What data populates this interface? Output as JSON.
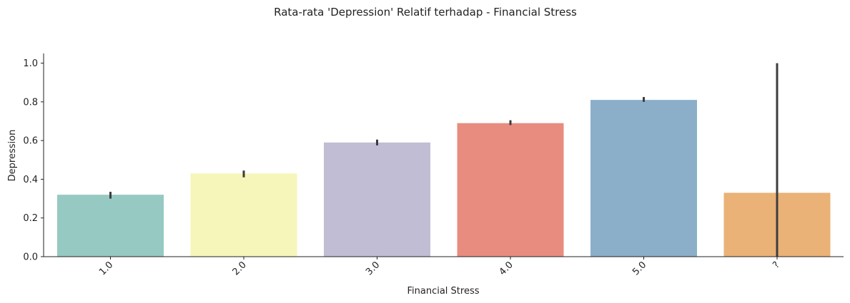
{
  "chart_data": {
    "type": "bar",
    "title": "Rata-rata 'Depression' Relatif terhadap - Financial Stress",
    "xlabel": "Financial Stress",
    "ylabel": "Depression",
    "categories": [
      "1.0",
      "2.0",
      "3.0",
      "4.0",
      "5.0",
      "?"
    ],
    "values": [
      0.32,
      0.43,
      0.59,
      0.69,
      0.81,
      0.33
    ],
    "error_bars": [
      {
        "low": 0.3,
        "high": 0.335
      },
      {
        "low": 0.41,
        "high": 0.445
      },
      {
        "low": 0.575,
        "high": 0.605
      },
      {
        "low": 0.68,
        "high": 0.705
      },
      {
        "low": 0.8,
        "high": 0.825
      },
      {
        "low": 0.0,
        "high": 1.0
      }
    ],
    "colors": [
      "#96c9c1",
      "#f7f6ba",
      "#c1bdd5",
      "#e98c80",
      "#8bafc9",
      "#eab276"
    ],
    "ylim": [
      0,
      1.05
    ],
    "yticks": [
      0.0,
      0.2,
      0.4,
      0.6,
      0.8,
      1.0
    ],
    "ytick_labels": [
      "0.0",
      "0.2",
      "0.4",
      "0.6",
      "0.8",
      "1.0"
    ],
    "grid": false,
    "legend": "none"
  }
}
